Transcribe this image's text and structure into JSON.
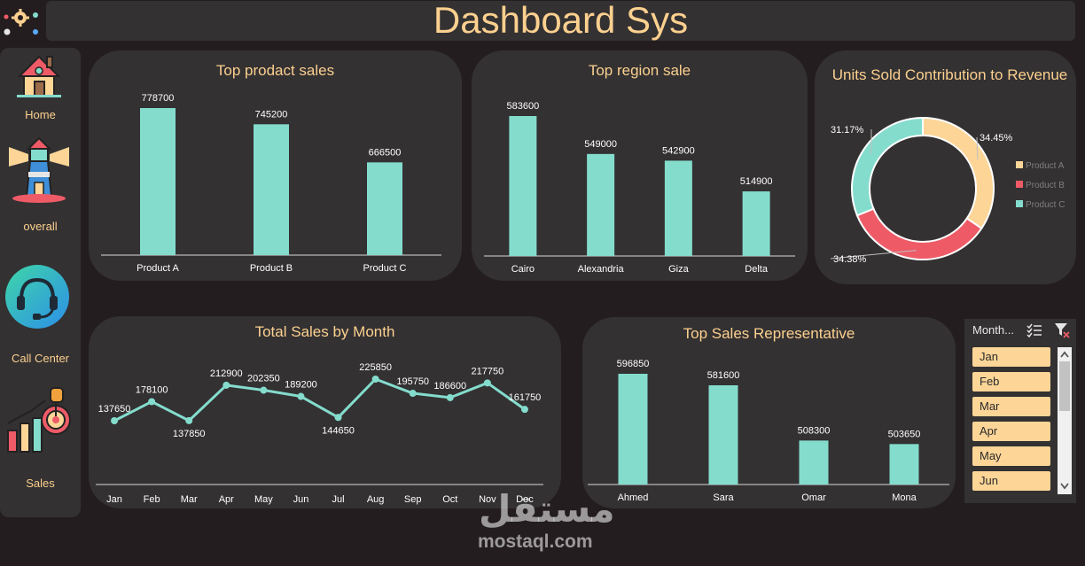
{
  "header": {
    "title": "Dashboard Sys"
  },
  "sidebar": {
    "items": [
      {
        "label": "Home",
        "icon": "house-icon"
      },
      {
        "label": "overall",
        "icon": "lighthouse-icon"
      },
      {
        "label": "Call Center",
        "icon": "headset-icon"
      },
      {
        "label": "Sales",
        "icon": "sales-growth-icon"
      }
    ]
  },
  "product_chart": {
    "title": "Top prodact sales",
    "categories": [
      "Product A",
      "Product B",
      "Product C"
    ],
    "values": [
      778700,
      745200,
      666500
    ]
  },
  "region_chart": {
    "title": "Top region sale",
    "categories": [
      "Cairo",
      "Alexandria",
      "Giza",
      "Delta"
    ],
    "values": [
      583600,
      549000,
      542900,
      514900
    ]
  },
  "donut_chart": {
    "title": "Units Sold Contribution to Revenue",
    "labels": [
      "Product A",
      "Product B",
      "Product C"
    ],
    "percent_labels": [
      "34.45%",
      "34.38%",
      "31.17%"
    ],
    "values": [
      34.45,
      34.38,
      31.17
    ],
    "colors": [
      "#fcd597",
      "#ee5b67",
      "#84dccd"
    ]
  },
  "month_chart": {
    "title": "Total Sales by Month",
    "categories": [
      "Jan",
      "Feb",
      "Mar",
      "Apr",
      "May",
      "Jun",
      "Jul",
      "Aug",
      "Sep",
      "Oct",
      "Nov",
      "Dec"
    ],
    "values": [
      137650,
      178100,
      137850,
      212900,
      202350,
      189200,
      144650,
      225850,
      195750,
      186600,
      217750,
      161750
    ]
  },
  "rep_chart": {
    "title": "Top Sales Representative",
    "categories": [
      "Ahmed",
      "Sara",
      "Omar",
      "Mona"
    ],
    "values": [
      596850,
      581600,
      508300,
      503650
    ]
  },
  "slicer": {
    "header": "Month...",
    "items": [
      "Jan",
      "Feb",
      "Mar",
      "Apr",
      "May",
      "Jun"
    ]
  },
  "watermark": {
    "arabic": "مستقل",
    "text": "mostaql.com"
  },
  "chart_data": [
    {
      "type": "bar",
      "title": "Top prodact sales",
      "categories": [
        "Product A",
        "Product B",
        "Product C"
      ],
      "values": [
        778700,
        745200,
        666500
      ]
    },
    {
      "type": "bar",
      "title": "Top region sale",
      "categories": [
        "Cairo",
        "Alexandria",
        "Giza",
        "Delta"
      ],
      "values": [
        583600,
        549000,
        542900,
        514900
      ]
    },
    {
      "type": "pie",
      "title": "Units Sold Contribution to Revenue",
      "categories": [
        "Product A",
        "Product B",
        "Product C"
      ],
      "values": [
        34.45,
        34.38,
        31.17
      ],
      "legend": "right"
    },
    {
      "type": "line",
      "title": "Total Sales by Month",
      "categories": [
        "Jan",
        "Feb",
        "Mar",
        "Apr",
        "May",
        "Jun",
        "Jul",
        "Aug",
        "Sep",
        "Oct",
        "Nov",
        "Dec"
      ],
      "values": [
        137650,
        178100,
        137850,
        212900,
        202350,
        189200,
        144650,
        225850,
        195750,
        186600,
        217750,
        161750
      ]
    },
    {
      "type": "bar",
      "title": "Top Sales Representative",
      "categories": [
        "Ahmed",
        "Sara",
        "Omar",
        "Mona"
      ],
      "values": [
        596850,
        581600,
        508300,
        503650
      ]
    }
  ],
  "colors": {
    "bar": "#84dccd",
    "accent": "#fcd08f",
    "panel": "#333132",
    "background": "#241d1f"
  }
}
